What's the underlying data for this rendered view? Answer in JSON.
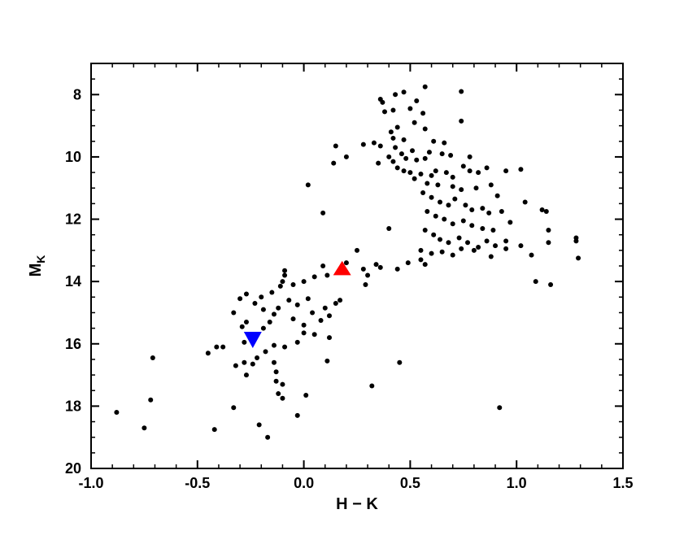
{
  "chart_data": {
    "type": "scatter",
    "title": "",
    "xlabel": "H − K",
    "ylabel": "M",
    "ylabel_subscript": "K",
    "xlim": [
      -1.0,
      1.5
    ],
    "ylim": [
      7.0,
      20.0
    ],
    "y_inverted": true,
    "x_ticks": [
      -1.0,
      -0.5,
      0.0,
      0.5,
      1.0,
      1.5
    ],
    "x_tick_labels": [
      "-1.0",
      "-0.5",
      "0.0",
      "0.5",
      "1.0",
      "1.5"
    ],
    "y_ticks": [
      8,
      10,
      12,
      14,
      16,
      18,
      20
    ],
    "y_tick_labels": [
      "8",
      "10",
      "12",
      "14",
      "16",
      "18",
      "20"
    ],
    "grid": false,
    "series": [
      {
        "marker": "circle",
        "color": "#000000",
        "points": [
          [
            0.36,
            8.15
          ],
          [
            0.37,
            8.25
          ],
          [
            0.43,
            8.0
          ],
          [
            0.47,
            7.92
          ],
          [
            0.53,
            8.2
          ],
          [
            0.57,
            7.75
          ],
          [
            0.74,
            7.9
          ],
          [
            0.38,
            8.55
          ],
          [
            0.42,
            8.5
          ],
          [
            0.5,
            8.45
          ],
          [
            0.56,
            8.6
          ],
          [
            0.52,
            8.9
          ],
          [
            0.44,
            9.05
          ],
          [
            0.57,
            9.1
          ],
          [
            0.74,
            8.85
          ],
          [
            0.41,
            9.2
          ],
          [
            0.42,
            9.4
          ],
          [
            0.47,
            9.45
          ],
          [
            0.61,
            9.5
          ],
          [
            0.66,
            9.55
          ],
          [
            0.33,
            9.55
          ],
          [
            0.28,
            9.6
          ],
          [
            0.36,
            9.65
          ],
          [
            0.43,
            9.7
          ],
          [
            0.51,
            9.8
          ],
          [
            0.59,
            9.85
          ],
          [
            0.65,
            9.9
          ],
          [
            0.69,
            9.95
          ],
          [
            0.46,
            9.9
          ],
          [
            0.4,
            10.0
          ],
          [
            0.48,
            10.05
          ],
          [
            0.53,
            10.1
          ],
          [
            0.57,
            10.05
          ],
          [
            0.78,
            10.0
          ],
          [
            0.15,
            9.65
          ],
          [
            0.2,
            10.0
          ],
          [
            0.14,
            10.2
          ],
          [
            0.35,
            10.2
          ],
          [
            0.42,
            10.15
          ],
          [
            0.44,
            10.35
          ],
          [
            0.47,
            10.45
          ],
          [
            0.5,
            10.5
          ],
          [
            0.55,
            10.55
          ],
          [
            0.6,
            10.6
          ],
          [
            0.62,
            10.45
          ],
          [
            0.67,
            10.5
          ],
          [
            0.7,
            10.65
          ],
          [
            0.75,
            10.3
          ],
          [
            0.78,
            10.45
          ],
          [
            0.82,
            10.5
          ],
          [
            0.86,
            10.35
          ],
          [
            0.95,
            10.45
          ],
          [
            1.02,
            10.4
          ],
          [
            0.52,
            10.7
          ],
          [
            0.58,
            10.85
          ],
          [
            0.63,
            10.9
          ],
          [
            0.7,
            10.95
          ],
          [
            0.74,
            11.05
          ],
          [
            0.81,
            11.0
          ],
          [
            0.88,
            10.9
          ],
          [
            0.91,
            11.25
          ],
          [
            0.56,
            11.15
          ],
          [
            0.6,
            11.3
          ],
          [
            0.64,
            11.45
          ],
          [
            0.68,
            11.55
          ],
          [
            0.71,
            11.35
          ],
          [
            0.76,
            11.55
          ],
          [
            0.79,
            11.7
          ],
          [
            0.84,
            11.65
          ],
          [
            0.87,
            11.8
          ],
          [
            0.93,
            11.75
          ],
          [
            1.04,
            11.45
          ],
          [
            0.58,
            11.75
          ],
          [
            0.62,
            11.9
          ],
          [
            0.66,
            12.0
          ],
          [
            0.7,
            12.15
          ],
          [
            0.75,
            12.05
          ],
          [
            0.79,
            12.2
          ],
          [
            0.84,
            12.3
          ],
          [
            0.89,
            12.35
          ],
          [
            0.97,
            12.1
          ],
          [
            1.12,
            11.7
          ],
          [
            1.14,
            11.75
          ],
          [
            0.57,
            12.35
          ],
          [
            0.61,
            12.5
          ],
          [
            0.64,
            12.65
          ],
          [
            0.68,
            12.75
          ],
          [
            0.73,
            12.6
          ],
          [
            0.77,
            12.75
          ],
          [
            0.82,
            12.9
          ],
          [
            0.86,
            12.7
          ],
          [
            0.9,
            12.85
          ],
          [
            0.95,
            12.95
          ],
          [
            1.02,
            12.85
          ],
          [
            1.15,
            12.35
          ],
          [
            1.15,
            12.75
          ],
          [
            0.55,
            13.0
          ],
          [
            0.6,
            13.1
          ],
          [
            0.65,
            13.05
          ],
          [
            0.7,
            13.15
          ],
          [
            0.74,
            12.95
          ],
          [
            0.8,
            13.0
          ],
          [
            0.88,
            13.2
          ],
          [
            0.95,
            12.7
          ],
          [
            1.07,
            13.15
          ],
          [
            1.28,
            12.6
          ],
          [
            1.28,
            12.7
          ],
          [
            1.29,
            13.25
          ],
          [
            0.57,
            13.45
          ],
          [
            0.55,
            13.3
          ],
          [
            1.09,
            14.0
          ],
          [
            1.16,
            14.1
          ],
          [
            0.4,
            12.3
          ],
          [
            0.02,
            10.9
          ],
          [
            0.09,
            11.8
          ],
          [
            0.25,
            13.0
          ],
          [
            0.34,
            13.45
          ],
          [
            0.28,
            13.6
          ],
          [
            0.3,
            13.8
          ],
          [
            0.29,
            14.1
          ],
          [
            0.36,
            13.55
          ],
          [
            0.44,
            13.6
          ],
          [
            0.49,
            13.4
          ],
          [
            0.2,
            13.4
          ],
          [
            0.09,
            13.5
          ],
          [
            0.11,
            13.8
          ],
          [
            0.05,
            13.85
          ],
          [
            0.0,
            14.0
          ],
          [
            -0.05,
            14.1
          ],
          [
            -0.09,
            13.65
          ],
          [
            -0.09,
            13.8
          ],
          [
            -0.1,
            14.0
          ],
          [
            -0.11,
            14.15
          ],
          [
            -0.15,
            14.35
          ],
          [
            -0.2,
            14.5
          ],
          [
            -0.23,
            14.7
          ],
          [
            -0.27,
            14.4
          ],
          [
            -0.3,
            14.55
          ],
          [
            -0.19,
            14.9
          ],
          [
            -0.12,
            14.85
          ],
          [
            -0.14,
            15.05
          ],
          [
            -0.16,
            15.3
          ],
          [
            -0.19,
            15.5
          ],
          [
            -0.23,
            15.75
          ],
          [
            -0.27,
            15.3
          ],
          [
            -0.33,
            15.0
          ],
          [
            -0.29,
            15.45
          ],
          [
            -0.07,
            14.6
          ],
          [
            -0.03,
            14.75
          ],
          [
            0.02,
            14.55
          ],
          [
            -0.05,
            15.2
          ],
          [
            0.0,
            15.4
          ],
          [
            0.04,
            15.0
          ],
          [
            0.08,
            15.25
          ],
          [
            0.12,
            15.1
          ],
          [
            0.15,
            14.7
          ],
          [
            0.17,
            14.6
          ],
          [
            0.1,
            14.85
          ],
          [
            0.05,
            15.7
          ],
          [
            0.12,
            15.8
          ],
          [
            0.0,
            15.65
          ],
          [
            -0.03,
            15.95
          ],
          [
            -0.09,
            16.1
          ],
          [
            -0.14,
            16.05
          ],
          [
            -0.18,
            16.25
          ],
          [
            -0.22,
            16.45
          ],
          [
            -0.24,
            16.65
          ],
          [
            -0.28,
            16.6
          ],
          [
            -0.32,
            16.7
          ],
          [
            -0.27,
            17.0
          ],
          [
            -0.14,
            16.6
          ],
          [
            -0.13,
            16.9
          ],
          [
            -0.13,
            17.2
          ],
          [
            -0.1,
            17.3
          ],
          [
            -0.12,
            17.6
          ],
          [
            -0.1,
            17.75
          ],
          [
            0.01,
            17.65
          ],
          [
            0.11,
            16.55
          ],
          [
            0.32,
            17.35
          ],
          [
            0.45,
            16.6
          ],
          [
            0.92,
            18.05
          ],
          [
            -0.38,
            16.1
          ],
          [
            -0.41,
            16.1
          ],
          [
            -0.45,
            16.3
          ],
          [
            -0.71,
            16.45
          ],
          [
            -0.72,
            17.8
          ],
          [
            -0.88,
            18.2
          ],
          [
            -0.75,
            18.7
          ],
          [
            -0.33,
            18.05
          ],
          [
            -0.42,
            18.75
          ],
          [
            -0.21,
            18.6
          ],
          [
            -0.17,
            19.0
          ],
          [
            -0.03,
            18.3
          ],
          [
            -0.28,
            15.95
          ]
        ]
      },
      {
        "marker": "triangle-up",
        "color": "#ff0000",
        "points": [
          [
            0.18,
            13.6
          ]
        ]
      },
      {
        "marker": "triangle-down",
        "color": "#0000ff",
        "points": [
          [
            -0.24,
            15.85
          ]
        ]
      }
    ]
  }
}
